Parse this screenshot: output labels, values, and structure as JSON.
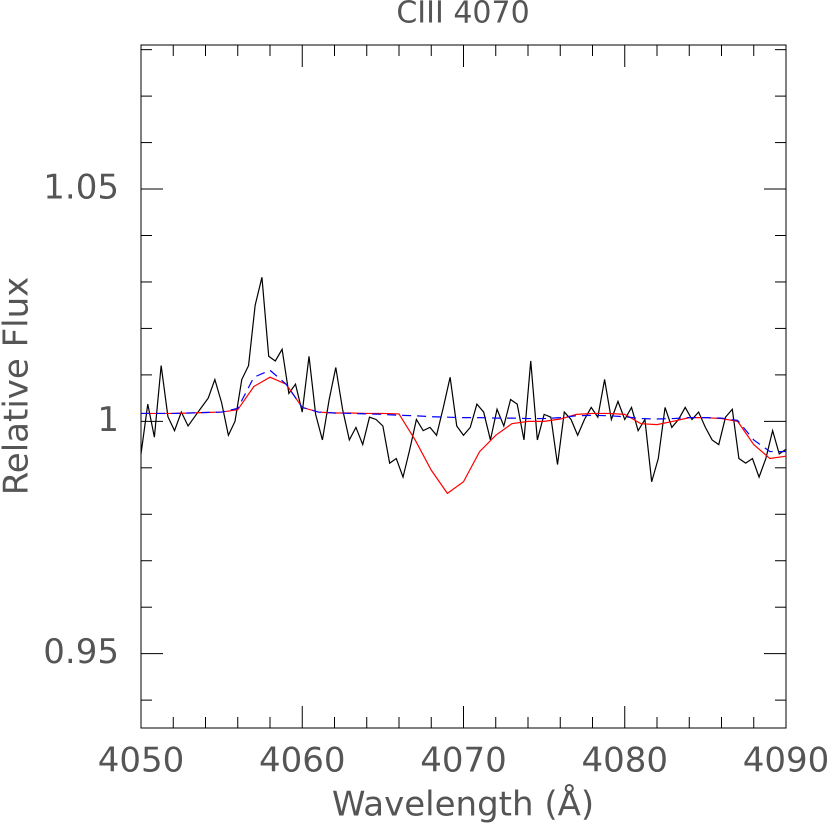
{
  "chart_data": {
    "type": "line",
    "title": "CIII 4070",
    "x_label": "Wavelength (Å)",
    "y_label": "Relative Flux",
    "xlim": [
      4050,
      4090
    ],
    "xticks": [
      4050,
      4060,
      4070,
      4080,
      4090
    ],
    "xminorticks": [
      4052,
      4054,
      4056,
      4058,
      4062,
      4064,
      4066,
      4068,
      4072,
      4074,
      4076,
      4078,
      4082,
      4084,
      4086,
      4088
    ],
    "ylim": [
      0.934,
      1.081
    ],
    "yticks": [
      0.95,
      1,
      1.05
    ],
    "yminorticks": [
      0.94,
      0.96,
      0.97,
      0.98,
      0.99,
      1.01,
      1.02,
      1.03,
      1.04,
      1.06,
      1.07,
      1.08
    ],
    "series": [
      {
        "color": "#000000",
        "dash": false,
        "x": [
          4050,
          4050.42,
          4050.83,
          4051.25,
          4051.67,
          4052.08,
          4052.5,
          4052.92,
          4053.33,
          4053.75,
          4054.17,
          4054.58,
          4055,
          4055.42,
          4055.83,
          4056.25,
          4056.67,
          4057.08,
          4057.5,
          4057.92,
          4058.33,
          4058.75,
          4059.17,
          4059.58,
          4060,
          4060.42,
          4060.83,
          4061.25,
          4061.67,
          4062.08,
          4062.5,
          4062.92,
          4063.33,
          4063.75,
          4064.17,
          4064.58,
          4065,
          4065.42,
          4065.83,
          4066.25,
          4066.67,
          4067.08,
          4067.5,
          4067.92,
          4068.33,
          4068.75,
          4069.17,
          4069.58,
          4070,
          4070.42,
          4070.83,
          4071.25,
          4071.67,
          4072.08,
          4072.5,
          4072.92,
          4073.33,
          4073.75,
          4074.17,
          4074.58,
          4075,
          4075.42,
          4075.83,
          4076.25,
          4076.67,
          4077.08,
          4077.5,
          4077.92,
          4078.33,
          4078.75,
          4079.17,
          4079.58,
          4080,
          4080.42,
          4080.83,
          4081.25,
          4081.67,
          4082.08,
          4082.5,
          4082.92,
          4083.33,
          4083.75,
          4084.17,
          4084.58,
          4085,
          4085.42,
          4085.83,
          4086.25,
          4086.67,
          4087.08,
          4087.5,
          4087.92,
          4088.33,
          4088.75,
          4089.17,
          4089.58,
          4090
        ],
        "values": [
          0.993,
          1.0037,
          0.9966,
          1.012,
          1.001,
          0.998,
          1.002,
          0.999,
          1.001,
          1.003,
          1.005,
          1.009,
          1.004,
          0.997,
          1.0,
          1.009,
          1.012,
          1.025,
          1.031,
          1.014,
          1.013,
          1.0155,
          1.006,
          1.008,
          1.002,
          1.014,
          1.0015,
          0.996,
          1.0047,
          1.0116,
          1.0026,
          0.996,
          0.9987,
          0.995,
          1.0009,
          1.0004,
          0.999,
          0.991,
          0.992,
          0.988,
          0.994,
          1.0004,
          0.998,
          0.9987,
          0.997,
          1.003,
          1.0095,
          0.999,
          0.997,
          0.9987,
          1.0037,
          1.002,
          0.996,
          1.0026,
          0.999,
          1.0047,
          1.0037,
          0.996,
          1.013,
          0.996,
          1.0015,
          1.0009,
          0.9907,
          1.002,
          1.0004,
          0.997,
          1.0004,
          1.003,
          1.0009,
          1.009,
          1.0004,
          1.0043,
          1.0004,
          1.003,
          0.998,
          1.0004,
          0.987,
          0.992,
          1.003,
          0.9987,
          1.0004,
          1.003,
          1.0004,
          1.002,
          0.9987,
          0.996,
          0.995,
          1.0009,
          1.0026,
          0.992,
          0.991,
          0.992,
          0.988,
          0.992,
          0.998,
          0.993,
          0.994
        ]
      },
      {
        "color": "#ff0000",
        "dash": false,
        "x": [
          4050,
          4051,
          4052,
          4053,
          4054,
          4055,
          4056,
          4057,
          4058,
          4059,
          4060,
          4061,
          4062,
          4063,
          4064,
          4065,
          4066,
          4067,
          4068,
          4069,
          4070,
          4071,
          4072,
          4073,
          4074,
          4075,
          4076,
          4077,
          4078,
          4079,
          4080,
          4081,
          4082,
          4083,
          4084,
          4085,
          4086,
          4087,
          4088,
          4089,
          4090
        ],
        "values": [
          1.0017,
          1.0017,
          1.0017,
          1.0018,
          1.0019,
          1.002,
          1.0025,
          1.0075,
          1.0095,
          1.008,
          1.003,
          1.002,
          1.0018,
          1.0018,
          1.0017,
          1.0017,
          1.0016,
          0.996,
          0.9895,
          0.9845,
          0.987,
          0.9935,
          0.997,
          0.9995,
          1.0,
          1.0,
          1.0005,
          1.0015,
          1.0017,
          1.0017,
          1.0015,
          0.9995,
          0.9993,
          1.0,
          1.0008,
          1.0008,
          1.0006,
          1.0,
          0.995,
          0.992,
          0.9925
        ]
      },
      {
        "color": "#0000ff",
        "dash": true,
        "x": [
          4050,
          4051,
          4052,
          4053,
          4054,
          4055,
          4056,
          4057,
          4058,
          4059,
          4060,
          4061,
          4062,
          4063,
          4064,
          4065,
          4066,
          4067,
          4068,
          4069,
          4070,
          4071,
          4072,
          4073,
          4074,
          4075,
          4076,
          4077,
          4078,
          4079,
          4080,
          4081,
          4082,
          4083,
          4084,
          4085,
          4086,
          4087,
          4088,
          4089,
          4090
        ],
        "values": [
          1.0017,
          1.0017,
          1.0017,
          1.0018,
          1.0019,
          1.002,
          1.0028,
          1.0095,
          1.011,
          1.008,
          1.003,
          1.002,
          1.0018,
          1.0017,
          1.0016,
          1.0015,
          1.0013,
          1.0012,
          1.001,
          1.0009,
          1.0008,
          1.0008,
          1.0007,
          1.0007,
          1.0006,
          1.0006,
          1.0008,
          1.0012,
          1.0013,
          1.0012,
          1.001,
          1.0006,
          1.0005,
          1.0006,
          1.0008,
          1.0008,
          1.0007,
          1.0002,
          0.996,
          0.9935,
          0.9935
        ]
      }
    ]
  }
}
